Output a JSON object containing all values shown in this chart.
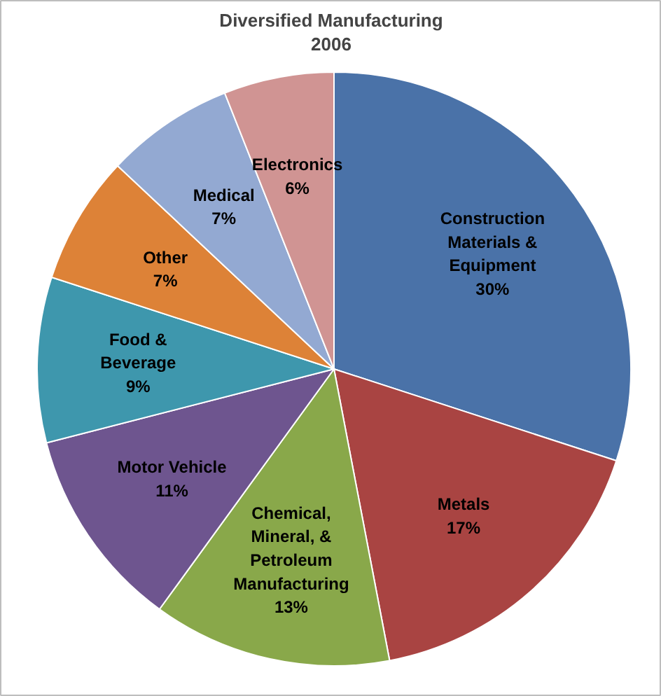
{
  "chart_data": {
    "type": "pie",
    "title": "Diversified Manufacturing",
    "subtitle": "2006",
    "categories": [
      "Construction Materials & Equipment",
      "Metals",
      "Chemical, Mineral, & Petroleum Manufacturing",
      "Motor Vehicle",
      "Food & Beverage",
      "Other",
      "Medical",
      "Electronics"
    ],
    "values": [
      30,
      17,
      13,
      11,
      9,
      7,
      7,
      6
    ],
    "value_labels": [
      "30%",
      "17%",
      "13%",
      "11%",
      "9%",
      "7%",
      "7%",
      "6%"
    ],
    "colors": [
      "#4a72a8",
      "#a94442",
      "#89a84a",
      "#6e558f",
      "#3e97ad",
      "#dd8237",
      "#93a9d2",
      "#d09493"
    ]
  }
}
